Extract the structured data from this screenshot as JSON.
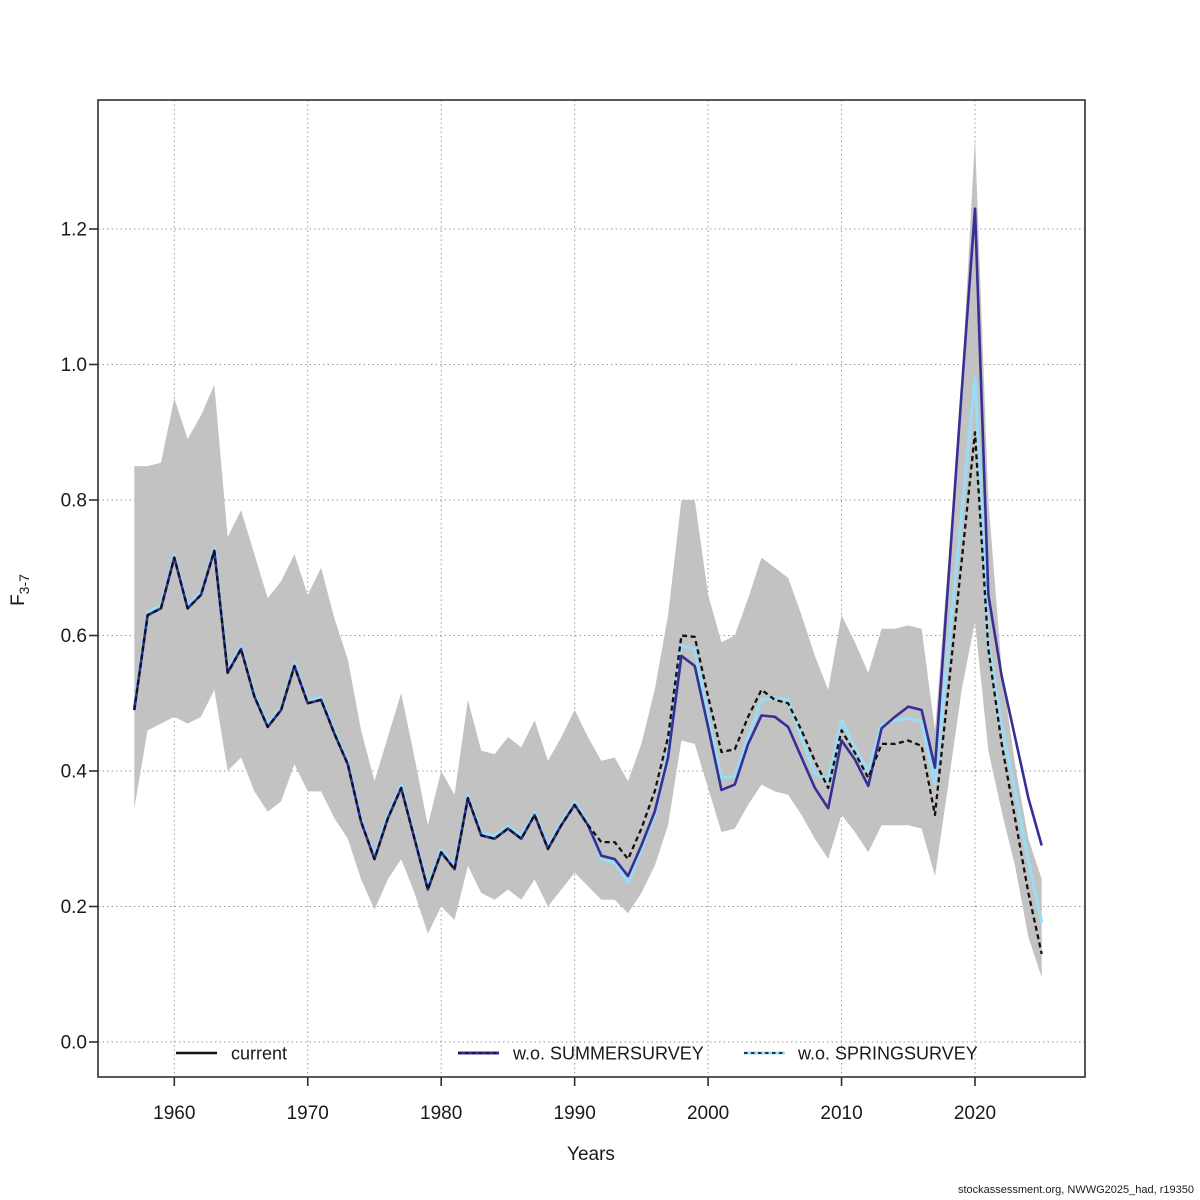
{
  "caption": "stockassessment.org, NWWG2025_had, r19350",
  "chart_data": {
    "type": "line",
    "title": "",
    "xlabel": "Years",
    "ylabel_base": "F",
    "ylabel_sub": "3-7",
    "xlim": [
      1954.3,
      2028.3
    ],
    "ylim": [
      -0.05,
      1.39
    ],
    "grid": "dotted",
    "legend_position": "bottom-inside",
    "x_ticks": [
      1960,
      1970,
      1980,
      1990,
      2000,
      2010,
      2020
    ],
    "y_ticks": [
      "0.0",
      "0.2",
      "0.4",
      "0.6",
      "0.8",
      "1.0",
      "1.2"
    ],
    "colors": {
      "band": "#c2c2c2",
      "current": "#111111",
      "wo_summersurvey": "#362f96",
      "wo_springsurvey": "#9adcf5",
      "grid": "#999999",
      "axis": "#2e2e2e"
    },
    "years": [
      1957,
      1958,
      1959,
      1960,
      1961,
      1962,
      1963,
      1964,
      1965,
      1966,
      1967,
      1968,
      1969,
      1970,
      1971,
      1972,
      1973,
      1974,
      1975,
      1976,
      1977,
      1978,
      1979,
      1980,
      1981,
      1982,
      1983,
      1984,
      1985,
      1986,
      1987,
      1988,
      1989,
      1990,
      1991,
      1992,
      1993,
      1994,
      1995,
      1996,
      1997,
      1998,
      1999,
      2000,
      2001,
      2002,
      2003,
      2004,
      2005,
      2006,
      2007,
      2008,
      2009,
      2010,
      2011,
      2012,
      2013,
      2014,
      2015,
      2016,
      2017,
      2018,
      2019,
      2020,
      2021,
      2022,
      2023,
      2024,
      2025
    ],
    "band": {
      "lo": [
        0.345,
        0.46,
        0.47,
        0.48,
        0.47,
        0.48,
        0.52,
        0.4,
        0.42,
        0.37,
        0.34,
        0.355,
        0.41,
        0.37,
        0.37,
        0.33,
        0.3,
        0.24,
        0.195,
        0.24,
        0.27,
        0.22,
        0.16,
        0.2,
        0.18,
        0.26,
        0.22,
        0.21,
        0.225,
        0.21,
        0.24,
        0.2,
        0.225,
        0.25,
        0.23,
        0.21,
        0.21,
        0.19,
        0.22,
        0.26,
        0.32,
        0.445,
        0.44,
        0.375,
        0.31,
        0.315,
        0.35,
        0.38,
        0.37,
        0.365,
        0.335,
        0.3,
        0.27,
        0.335,
        0.31,
        0.28,
        0.32,
        0.32,
        0.32,
        0.315,
        0.245,
        0.38,
        0.52,
        0.62,
        0.43,
        0.34,
        0.26,
        0.155,
        0.095
      ],
      "hi": [
        0.85,
        0.85,
        0.855,
        0.95,
        0.89,
        0.925,
        0.97,
        0.745,
        0.785,
        0.72,
        0.655,
        0.68,
        0.72,
        0.66,
        0.7,
        0.625,
        0.565,
        0.46,
        0.385,
        0.45,
        0.515,
        0.42,
        0.32,
        0.4,
        0.365,
        0.505,
        0.43,
        0.425,
        0.45,
        0.435,
        0.475,
        0.415,
        0.45,
        0.49,
        0.45,
        0.415,
        0.42,
        0.385,
        0.44,
        0.52,
        0.63,
        0.8,
        0.8,
        0.66,
        0.59,
        0.6,
        0.655,
        0.715,
        0.7,
        0.685,
        0.63,
        0.57,
        0.52,
        0.63,
        0.59,
        0.545,
        0.61,
        0.61,
        0.615,
        0.61,
        0.46,
        0.71,
        0.97,
        1.335,
        0.8,
        0.55,
        0.41,
        0.3,
        0.24
      ]
    },
    "series": [
      {
        "key": "current",
        "label": "current",
        "values": [
          0.49,
          0.63,
          0.64,
          0.715,
          0.64,
          0.66,
          0.725,
          0.545,
          0.58,
          0.51,
          0.465,
          0.49,
          0.555,
          0.5,
          0.505,
          0.455,
          0.41,
          0.325,
          0.27,
          0.33,
          0.375,
          0.3,
          0.225,
          0.28,
          0.255,
          0.36,
          0.305,
          0.3,
          0.315,
          0.3,
          0.335,
          0.285,
          0.32,
          0.35,
          0.32,
          0.295,
          0.295,
          0.27,
          0.315,
          0.37,
          0.45,
          0.6,
          0.598,
          0.51,
          0.428,
          0.432,
          0.48,
          0.52,
          0.505,
          0.5,
          0.46,
          0.415,
          0.375,
          0.46,
          0.427,
          0.39,
          0.44,
          0.44,
          0.445,
          0.437,
          0.335,
          0.52,
          0.71,
          0.9,
          0.58,
          0.44,
          0.33,
          0.22,
          0.13
        ]
      },
      {
        "key": "wo_summersurvey",
        "label": "w.o. SUMMERSURVEY",
        "values": [
          0.49,
          0.63,
          0.64,
          0.715,
          0.64,
          0.66,
          0.725,
          0.545,
          0.58,
          0.51,
          0.465,
          0.49,
          0.555,
          0.5,
          0.505,
          0.455,
          0.41,
          0.325,
          0.27,
          0.33,
          0.375,
          0.3,
          0.225,
          0.28,
          0.255,
          0.36,
          0.305,
          0.3,
          0.315,
          0.3,
          0.335,
          0.285,
          0.32,
          0.35,
          0.32,
          0.275,
          0.27,
          0.245,
          0.29,
          0.34,
          0.42,
          0.57,
          0.555,
          0.465,
          0.372,
          0.38,
          0.44,
          0.482,
          0.48,
          0.465,
          0.42,
          0.375,
          0.345,
          0.445,
          0.417,
          0.378,
          0.463,
          0.48,
          0.495,
          0.49,
          0.405,
          0.68,
          0.96,
          1.23,
          0.66,
          0.54,
          0.45,
          0.36,
          0.29
        ]
      },
      {
        "key": "wo_springsurvey",
        "label": "w.o. SPRINGSURVEY",
        "values": [
          0.494,
          0.634,
          0.644,
          0.719,
          0.644,
          0.664,
          0.729,
          0.549,
          0.584,
          0.514,
          0.469,
          0.494,
          0.559,
          0.504,
          0.509,
          0.459,
          0.414,
          0.329,
          0.274,
          0.334,
          0.379,
          0.304,
          0.229,
          0.284,
          0.259,
          0.364,
          0.309,
          0.304,
          0.319,
          0.304,
          0.339,
          0.289,
          0.324,
          0.354,
          0.324,
          0.27,
          0.265,
          0.235,
          0.285,
          0.335,
          0.43,
          0.585,
          0.58,
          0.478,
          0.39,
          0.392,
          0.45,
          0.505,
          0.508,
          0.505,
          0.448,
          0.397,
          0.385,
          0.475,
          0.434,
          0.4,
          0.468,
          0.475,
          0.478,
          0.473,
          0.38,
          0.58,
          0.78,
          0.98,
          0.588,
          0.468,
          0.37,
          0.267,
          0.176
        ]
      }
    ]
  }
}
